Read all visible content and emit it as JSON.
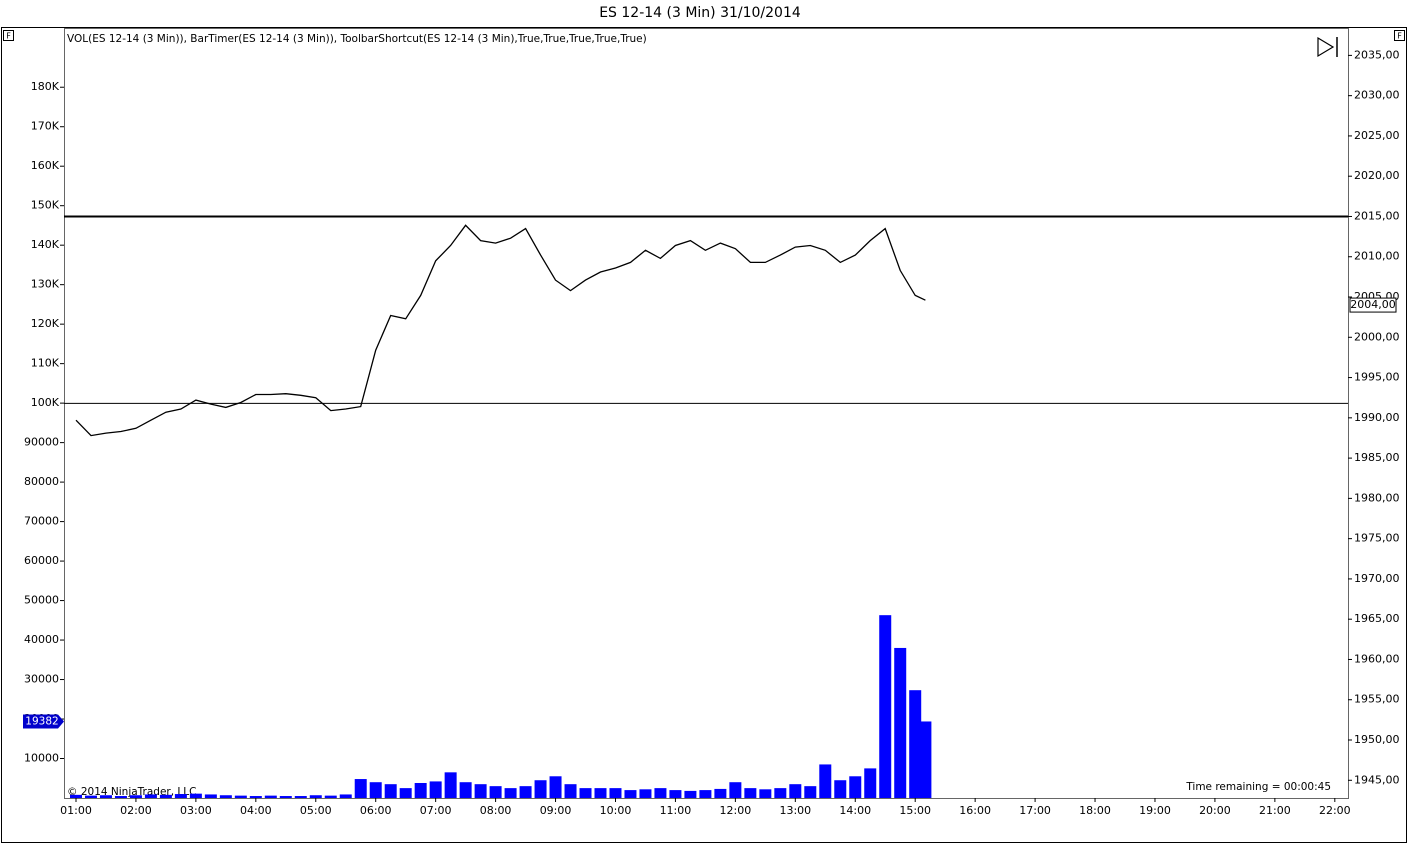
{
  "chart_data": {
    "type": "combo",
    "title": "ES 12-14 (3 Min)  31/10/2014",
    "indicators_label": "VOL(ES 12-14 (3 Min)), BarTimer(ES 12-14 (3 Min)), ToolbarShortcut(ES 12-14 (3 Min),True,True,True,True,True)",
    "copyright": "© 2014 NinjaTrader, LLC",
    "time_remaining": "Time remaining = 00:00:45",
    "panel_buttons": [
      "F",
      "F"
    ],
    "x": [
      1,
      1.25,
      1.5,
      1.75,
      2,
      2.25,
      2.5,
      2.75,
      3,
      3.25,
      3.5,
      3.75,
      4,
      4.25,
      4.5,
      4.75,
      5,
      5.25,
      5.5,
      5.75,
      6,
      6.25,
      6.5,
      6.75,
      7,
      7.25,
      7.5,
      7.75,
      8,
      8.25,
      8.5,
      8.75,
      9,
      9.25,
      9.5,
      9.75,
      10,
      10.25,
      10.5,
      10.75,
      11,
      11.25,
      11.5,
      11.75,
      12,
      12.25,
      12.5,
      12.75,
      13,
      13.25,
      13.5,
      13.75,
      14,
      14.25,
      14.5,
      14.75,
      15,
      15.17
    ],
    "series": [
      {
        "name": "VOL",
        "type": "bar",
        "axis": "y",
        "color": "#0000ff",
        "values": [
          800,
          600,
          700,
          500,
          700,
          900,
          800,
          1000,
          1100,
          900,
          700,
          600,
          500,
          600,
          500,
          500,
          700,
          600,
          900,
          4800,
          4000,
          3500,
          2500,
          3800,
          4200,
          6500,
          4000,
          3500,
          3000,
          2500,
          3000,
          4500,
          5500,
          3500,
          2500,
          2500,
          2500,
          2000,
          2200,
          2500,
          2000,
          1800,
          2000,
          2300,
          4000,
          2500,
          2200,
          2500,
          3500,
          3000,
          8500,
          4500,
          5500,
          7500,
          46300,
          38000,
          27300,
          19382
        ]
      },
      {
        "name": "ES 12-14",
        "type": "line",
        "axis": "y2",
        "color": "#000000",
        "values": [
          1989.7,
          1987.8,
          1988.1,
          1988.3,
          1988.7,
          1989.7,
          1990.7,
          1991.1,
          1992.2,
          1991.7,
          1991.3,
          1991.9,
          1992.9,
          1992.9,
          1993.0,
          1992.8,
          1992.5,
          1990.9,
          1991.1,
          1991.4,
          1998.4,
          2002.7,
          2002.3,
          2005.2,
          2009.5,
          2011.4,
          2013.9,
          2012.0,
          2011.7,
          2012.3,
          2013.5,
          2010.2,
          2007.1,
          2005.8,
          2007.1,
          2008.1,
          2008.6,
          2009.3,
          2010.8,
          2009.8,
          2011.4,
          2012.0,
          2010.8,
          2011.7,
          2011.0,
          2009.3,
          2009.3,
          2010.2,
          2011.2,
          2011.4,
          2010.8,
          2009.3,
          2010.2,
          2012.0,
          2013.5,
          2008.3,
          2005.2,
          2004.6
        ]
      }
    ],
    "xlim": [
      0.8,
      22.22
    ],
    "xticks": [
      {
        "value": 1,
        "label": "01:00"
      },
      {
        "value": 2,
        "label": "02:00"
      },
      {
        "value": 3,
        "label": "03:00"
      },
      {
        "value": 4,
        "label": "04:00"
      },
      {
        "value": 5,
        "label": "05:00"
      },
      {
        "value": 6,
        "label": "06:00"
      },
      {
        "value": 7,
        "label": "07:00"
      },
      {
        "value": 8,
        "label": "08:00"
      },
      {
        "value": 9,
        "label": "09:00"
      },
      {
        "value": 10,
        "label": "10:00"
      },
      {
        "value": 11,
        "label": "11:00"
      },
      {
        "value": 12,
        "label": "12:00"
      },
      {
        "value": 13,
        "label": "13:00"
      },
      {
        "value": 14,
        "label": "14:00"
      },
      {
        "value": 15,
        "label": "15:00"
      },
      {
        "value": 16,
        "label": "16:00"
      },
      {
        "value": 17,
        "label": "17:00"
      },
      {
        "value": 18,
        "label": "18:00"
      },
      {
        "value": 19,
        "label": "19:00"
      },
      {
        "value": 20,
        "label": "20:00"
      },
      {
        "value": 21,
        "label": "21:00"
      },
      {
        "value": 22,
        "label": "22:00"
      }
    ],
    "ylim": [
      0,
      195000
    ],
    "yticks": [
      10000,
      20000,
      30000,
      40000,
      50000,
      60000,
      70000,
      80000,
      90000,
      {
        "value": 100000,
        "label": "100K"
      },
      {
        "value": 110000,
        "label": "110K"
      },
      {
        "value": 120000,
        "label": "120K"
      },
      {
        "value": 130000,
        "label": "130K"
      },
      {
        "value": 140000,
        "label": "140K"
      },
      {
        "value": 150000,
        "label": "150K"
      },
      {
        "value": 160000,
        "label": "160K"
      },
      {
        "value": 170000,
        "label": "170K"
      },
      {
        "value": 180000,
        "label": "180K"
      }
    ],
    "y2lim": [
      1942.8,
      2038.4
    ],
    "y2ticks": [
      {
        "value": 1945,
        "label": "1945,00"
      },
      {
        "value": 1950,
        "label": "1950,00"
      },
      {
        "value": 1955,
        "label": "1955,00"
      },
      {
        "value": 1960,
        "label": "1960,00"
      },
      {
        "value": 1965,
        "label": "1965,00"
      },
      {
        "value": 1970,
        "label": "1970,00"
      },
      {
        "value": 1975,
        "label": "1975,00"
      },
      {
        "value": 1980,
        "label": "1980,00"
      },
      {
        "value": 1985,
        "label": "1985,00"
      },
      {
        "value": 1990,
        "label": "1990,00"
      },
      {
        "value": 1995,
        "label": "1995,00"
      },
      {
        "value": 2000,
        "label": "2000,00"
      },
      {
        "value": 2005,
        "label": "2005,00"
      },
      {
        "value": 2010,
        "label": "2010,00"
      },
      {
        "value": 2015,
        "label": "2015,00"
      },
      {
        "value": 2020,
        "label": "2020,00"
      },
      {
        "value": 2025,
        "label": "2025,00"
      },
      {
        "value": 2030,
        "label": "2030,00"
      },
      {
        "value": 2035,
        "label": "2035,00"
      }
    ],
    "horizontal_lines": [
      2015,
      1991.8
    ],
    "price_marker": {
      "value": 2004,
      "label": "2004,00"
    },
    "volume_marker": 19382,
    "grid": false
  }
}
